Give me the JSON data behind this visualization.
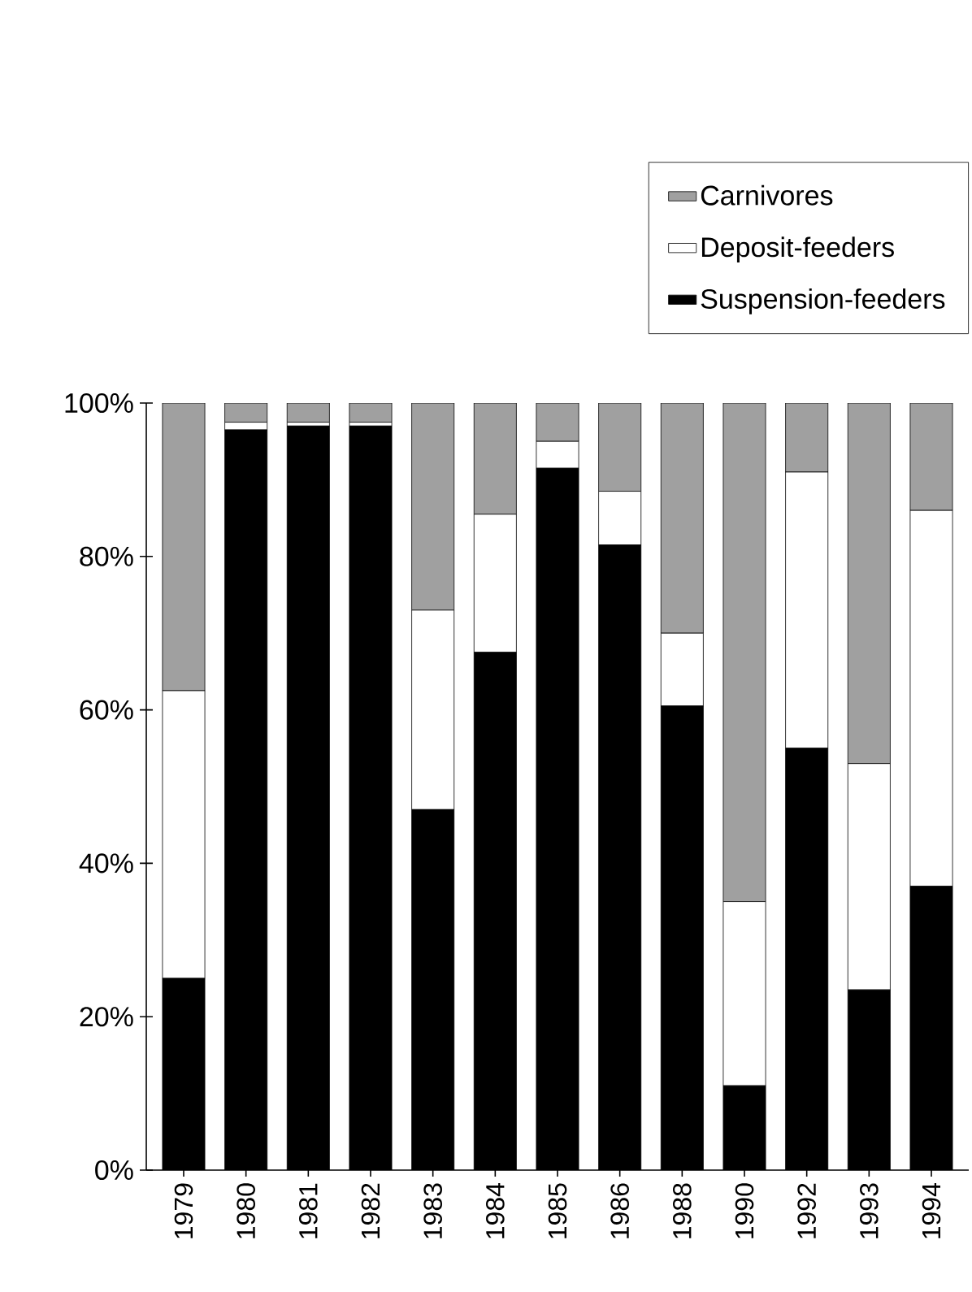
{
  "chart_data": {
    "type": "bar",
    "stacked": true,
    "categories": [
      "1979",
      "1980",
      "1981",
      "1982",
      "1983",
      "1984",
      "1985",
      "1986",
      "1988",
      "1990",
      "1992",
      "1993",
      "1994"
    ],
    "series": [
      {
        "name": "Suspension-feeders",
        "color": "#000000",
        "values": [
          25,
          96.5,
          97,
          97,
          47,
          67.5,
          91.5,
          81.5,
          60.5,
          11,
          55,
          23.5,
          37
        ]
      },
      {
        "name": "Deposit-feeders",
        "color": "#ffffff",
        "values": [
          37.5,
          1,
          0.5,
          0.5,
          26,
          18,
          3.5,
          7,
          9.5,
          24,
          36,
          29.5,
          49
        ]
      },
      {
        "name": "Carnivores",
        "color": "#a0a0a0",
        "values": [
          37.5,
          2.5,
          2.5,
          2.5,
          27,
          14.5,
          5,
          11.5,
          30,
          65,
          9,
          47,
          14
        ]
      }
    ],
    "ylim": [
      0,
      100
    ],
    "yticks": [
      {
        "value": 0,
        "label": "0%"
      },
      {
        "value": 20,
        "label": "20%"
      },
      {
        "value": 40,
        "label": "40%"
      },
      {
        "value": 60,
        "label": "60%"
      },
      {
        "value": 80,
        "label": "80%"
      },
      {
        "value": 100,
        "label": "100%"
      }
    ],
    "legend": "top right"
  }
}
